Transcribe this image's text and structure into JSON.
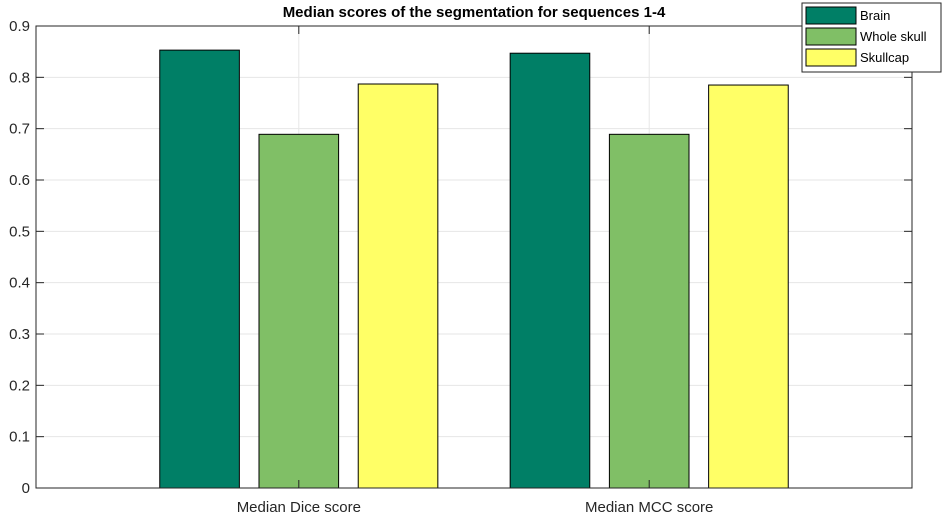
{
  "chart_data": {
    "type": "bar",
    "title": "Median scores of the segmentation for sequences 1-4",
    "xlabel": "",
    "ylabel": "",
    "categories": [
      "Median Dice score",
      "Median MCC score"
    ],
    "series": [
      {
        "name": "Brain",
        "values": [
          0.853,
          0.847
        ],
        "color": "#007f66"
      },
      {
        "name": "Whole skull",
        "values": [
          0.689,
          0.689
        ],
        "color": "#80bf66"
      },
      {
        "name": "Skullcap",
        "values": [
          0.787,
          0.785
        ],
        "color": "#ffff66"
      }
    ],
    "ylim": [
      0,
      0.9
    ],
    "yticks": [
      "0",
      "0.1",
      "0.2",
      "0.3",
      "0.4",
      "0.5",
      "0.6",
      "0.7",
      "0.8",
      "0.9"
    ],
    "grid": true,
    "legend_position": "top-right"
  }
}
